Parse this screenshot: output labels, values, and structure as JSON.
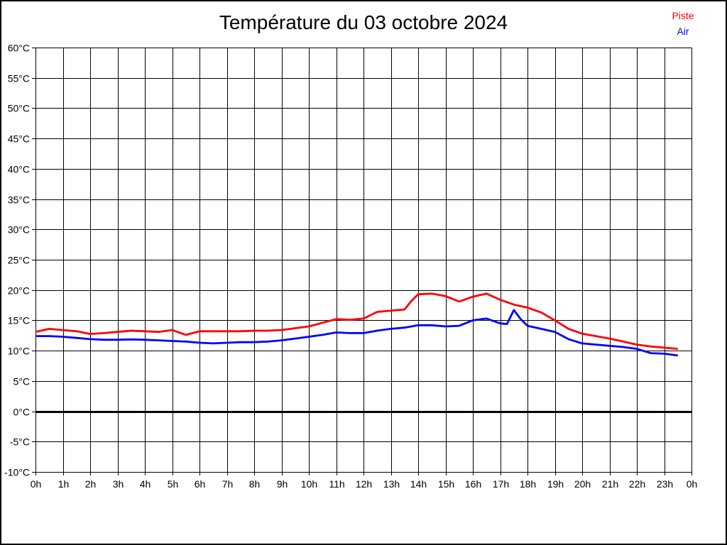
{
  "title": "Température du 03 octobre 2024",
  "legend": [
    {
      "label": "Piste",
      "color": "#ff0000"
    },
    {
      "label": "Air",
      "color": "#0000ff"
    }
  ],
  "chart_data": {
    "type": "line",
    "title": "Température du 03 octobre 2024",
    "xlabel": "",
    "ylabel": "",
    "xlim": [
      0,
      24
    ],
    "ylim": [
      -10,
      60
    ],
    "grid": true,
    "grid_color": "#000000",
    "background": "#ffffff",
    "legend_position": "top-right",
    "x_tick_values": [
      0,
      1,
      2,
      3,
      4,
      5,
      6,
      7,
      8,
      9,
      10,
      11,
      12,
      13,
      14,
      15,
      16,
      17,
      18,
      19,
      20,
      21,
      22,
      23,
      24
    ],
    "x_tick_labels": [
      "0h",
      "1h",
      "2h",
      "3h",
      "4h",
      "5h",
      "6h",
      "7h",
      "8h",
      "9h",
      "10h",
      "11h",
      "12h",
      "13h",
      "14h",
      "15h",
      "16h",
      "17h",
      "18h",
      "19h",
      "20h",
      "21h",
      "22h",
      "23h",
      "0h"
    ],
    "y_tick_values": [
      60,
      55,
      50,
      45,
      40,
      35,
      30,
      25,
      20,
      15,
      10,
      5,
      0,
      -5,
      -10
    ],
    "y_tick_labels": [
      "60°C",
      "55°C",
      "50°C",
      "45°C",
      "40°C",
      "35°C",
      "30°C",
      "25°C",
      "20°C",
      "15°C",
      "10°C",
      "5°C",
      "0°C",
      "-5°C",
      "-10°C"
    ],
    "zero_line": {
      "value": 0,
      "width": 3
    },
    "x": [
      0,
      0.5,
      1,
      1.5,
      2,
      2.5,
      3,
      3.5,
      4,
      4.5,
      5,
      5.5,
      6,
      6.5,
      7,
      7.5,
      8,
      8.5,
      9,
      9.5,
      10,
      10.5,
      11,
      11.5,
      12,
      12.5,
      13,
      13.5,
      13.75,
      14,
      14.5,
      15,
      15.5,
      16,
      16.5,
      17,
      17.25,
      17.5,
      17.75,
      18,
      18.5,
      19,
      19.5,
      20,
      20.5,
      21,
      21.5,
      22,
      22.5,
      23,
      23.5
    ],
    "series": [
      {
        "name": "Piste",
        "color": "#ff0000",
        "values": [
          13.1,
          13.6,
          13.4,
          13.2,
          12.75,
          12.9,
          13.1,
          13.3,
          13.2,
          13.1,
          13.4,
          12.6,
          13.2,
          13.2,
          13.2,
          13.2,
          13.3,
          13.3,
          13.4,
          13.7,
          14.0,
          14.6,
          15.2,
          15.1,
          15.3,
          16.4,
          16.6,
          16.8,
          18.2,
          19.3,
          19.4,
          19.0,
          18.1,
          18.9,
          19.4,
          18.4,
          18.0,
          17.6,
          17.35,
          17.1,
          16.3,
          15.0,
          13.6,
          12.8,
          12.4,
          12.0,
          11.5,
          11.0,
          10.7,
          10.5,
          10.3
        ]
      },
      {
        "name": "Air",
        "color": "#0000ff",
        "values": [
          12.4,
          12.4,
          12.3,
          12.1,
          11.9,
          11.8,
          11.8,
          11.85,
          11.8,
          11.7,
          11.6,
          11.5,
          11.3,
          11.2,
          11.3,
          11.4,
          11.4,
          11.5,
          11.7,
          12.0,
          12.3,
          12.6,
          13.0,
          12.9,
          12.9,
          13.3,
          13.6,
          13.8,
          14.0,
          14.2,
          14.2,
          14.0,
          14.1,
          15.0,
          15.3,
          14.5,
          14.4,
          16.7,
          15.2,
          14.1,
          13.6,
          13.1,
          11.9,
          11.2,
          11.0,
          10.8,
          10.6,
          10.3,
          9.6,
          9.5,
          9.2
        ]
      }
    ]
  }
}
